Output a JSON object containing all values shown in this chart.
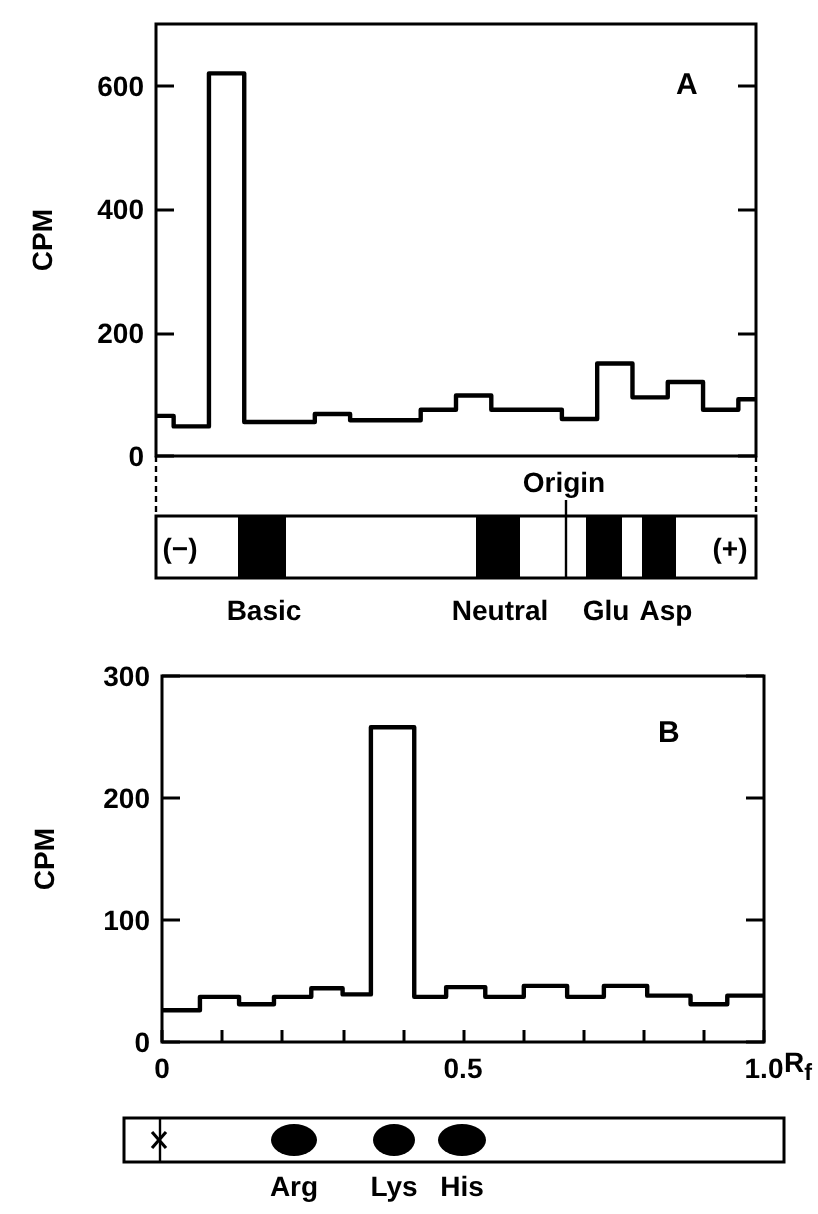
{
  "chart_data": [
    {
      "type": "step",
      "title": "A",
      "ylabel": "CPM",
      "color": "#000000",
      "categories": [
        null,
        null,
        null,
        null,
        null,
        null,
        null,
        null,
        null,
        null,
        null,
        null,
        null,
        null,
        null,
        null,
        null,
        null
      ],
      "values": [
        65,
        48,
        620,
        55,
        55,
        68,
        58,
        58,
        75,
        98,
        75,
        75,
        60,
        150,
        95,
        120,
        75,
        92
      ],
      "ylim": [
        0,
        700
      ],
      "yticks": [
        0,
        200,
        400,
        600
      ],
      "tick_labels": "y",
      "annotations": [
        "Origin",
        "(−)",
        "(+)",
        "Basic",
        "Neutral",
        "Glu",
        "Asp"
      ]
    },
    {
      "type": "histogram",
      "title": "B",
      "ylabel": "CPM",
      "xlabel": "R$_{f}$",
      "color": "#000000",
      "bins": [
        0,
        0.063,
        0.128,
        0.186,
        0.248,
        0.3,
        0.347,
        0.419,
        0.472,
        0.537,
        0.601,
        0.673,
        0.734,
        0.806,
        0.878,
        0.939,
        1.0
      ],
      "values": [
        26,
        37,
        31,
        37,
        44,
        39,
        258,
        37,
        45,
        37,
        46,
        37,
        46,
        38,
        31,
        38
      ],
      "xlim": [
        0,
        1
      ],
      "xticks": [
        0,
        {
          "value": 0.1,
          "label": null
        },
        {
          "value": 0.2,
          "label": null
        },
        {
          "value": 0.3,
          "label": null
        },
        {
          "value": 0.4,
          "label": null
        },
        0.5,
        {
          "value": 0.6,
          "label": null
        },
        {
          "value": 0.7,
          "label": null
        },
        {
          "value": 0.8,
          "label": null
        },
        {
          "value": 0.9,
          "label": null
        },
        {
          "value": 1,
          "label": "1.0"
        }
      ],
      "ylim": [
        0,
        300
      ],
      "yticks": [
        0,
        100,
        200,
        300
      ],
      "annotations": [
        "Arg",
        "Lys",
        "His"
      ]
    }
  ]
}
